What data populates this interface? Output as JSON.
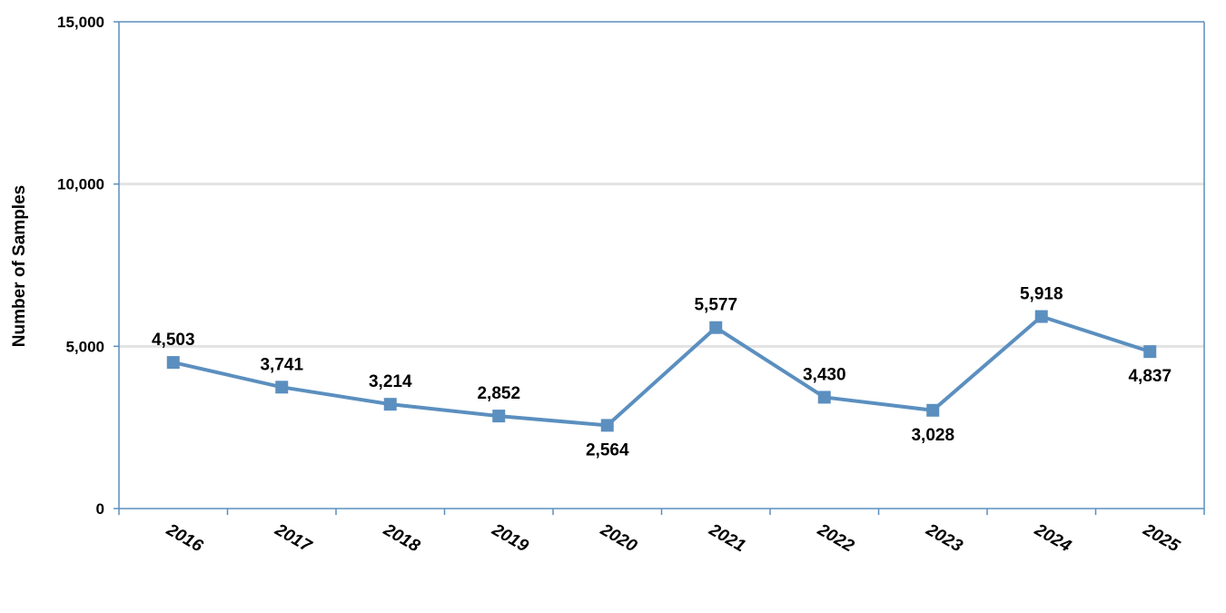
{
  "chart_data": {
    "type": "line",
    "title": "",
    "xlabel": "",
    "ylabel": "Number of Samples",
    "categories": [
      "2016",
      "2017",
      "2018",
      "2019",
      "2020",
      "2021",
      "2022",
      "2023",
      "2024",
      "2025"
    ],
    "series": [
      {
        "values": [
          4503,
          3741,
          3214,
          2852,
          2564,
          5577,
          3430,
          3028,
          5918,
          4837
        ],
        "data_labels": [
          "4,503",
          "3,741",
          "3,214",
          "2,852",
          "2,564",
          "5,577",
          "3,430",
          "3,028",
          "5,918",
          "4,837"
        ],
        "color": "#5b8fbf",
        "marker": "square"
      }
    ],
    "ylim": [
      0,
      15000
    ],
    "yticks": [
      0,
      5000,
      10000,
      15000
    ],
    "ytick_labels": [
      "0",
      "5,000",
      "10,000",
      "15,000"
    ],
    "grid": true,
    "grid_color": "#e3e3e3",
    "axis_color": "#5b8fbf",
    "legend": "none"
  }
}
